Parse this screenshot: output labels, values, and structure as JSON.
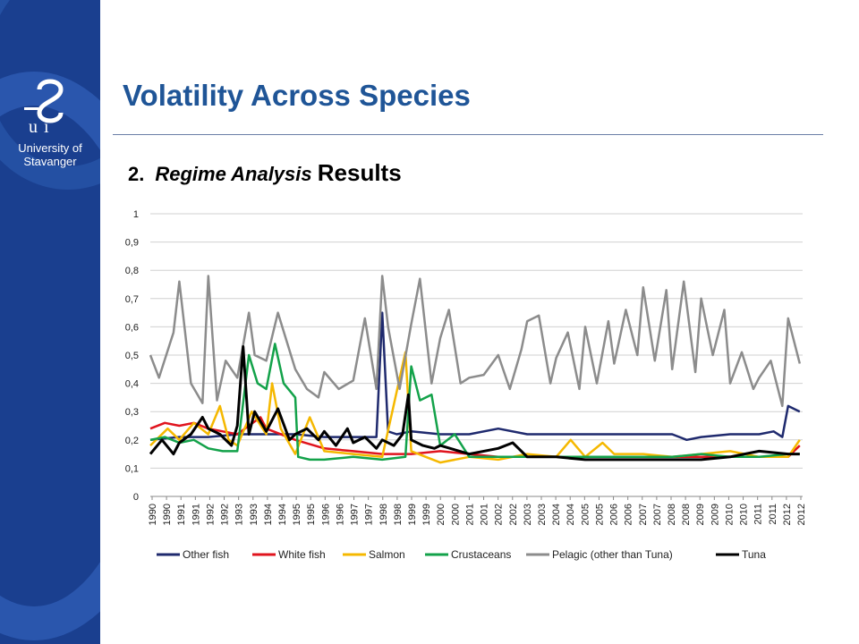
{
  "slide": {
    "title": "Volatility Across Species",
    "subtitle_number": "2.",
    "subtitle_italic": "Regime Analysis",
    "subtitle_plain": "Results"
  },
  "logo": {
    "line1": "University of",
    "line2": "Stavanger",
    "mark": "UiS"
  },
  "chart_data": {
    "type": "line",
    "ylim": [
      0,
      1
    ],
    "yticks": [
      "0",
      "0,1",
      "0,2",
      "0,3",
      "0,4",
      "0,5",
      "0,6",
      "0,7",
      "0,8",
      "0,9",
      "1"
    ],
    "xlim": [
      1990,
      2012.5
    ],
    "xtick_labels": [
      "1990",
      "1990",
      "1991",
      "1991",
      "1992",
      "1992",
      "1993",
      "1993",
      "1994",
      "1994",
      "1995",
      "1995",
      "1996",
      "1996",
      "1997",
      "1997",
      "1998",
      "1998",
      "1999",
      "1999",
      "2000",
      "2000",
      "2001",
      "2001",
      "2002",
      "2002",
      "2003",
      "2003",
      "2004",
      "2004",
      "2005",
      "2005",
      "2006",
      "2006",
      "2007",
      "2007",
      "2008",
      "2008",
      "2009",
      "2009",
      "2010",
      "2010",
      "2011",
      "2011",
      "2012",
      "2012"
    ],
    "grid": true,
    "legend_position": "bottom",
    "series": [
      {
        "name": "Other fish",
        "color": "#1f2a6e",
        "width": 2.5,
        "x": [
          1990,
          1991,
          1992,
          1993,
          1994,
          1995,
          1996,
          1997,
          1997.8,
          1998,
          1998.2,
          1998.5,
          1999,
          2000,
          2001,
          2002,
          2003,
          2004,
          2005,
          2006,
          2007,
          2008,
          2008.5,
          2009,
          2010,
          2011,
          2011.5,
          2011.8,
          2012,
          2012.4
        ],
        "y": [
          0.2,
          0.21,
          0.21,
          0.22,
          0.22,
          0.22,
          0.21,
          0.21,
          0.21,
          0.65,
          0.23,
          0.22,
          0.23,
          0.22,
          0.22,
          0.24,
          0.22,
          0.22,
          0.22,
          0.22,
          0.22,
          0.22,
          0.2,
          0.21,
          0.22,
          0.22,
          0.23,
          0.21,
          0.32,
          0.3
        ]
      },
      {
        "name": "White fish",
        "color": "#e0141e",
        "width": 2.5,
        "x": [
          1990,
          1990.5,
          1991,
          1991.5,
          1992,
          1993,
          1993.8,
          1994,
          1995,
          1996,
          1997,
          1998,
          1999,
          2000,
          2001,
          2002,
          2003,
          2004,
          2005,
          2006,
          2007,
          2008,
          2009,
          2010,
          2011,
          2012,
          2012.4
        ],
        "y": [
          0.24,
          0.26,
          0.25,
          0.26,
          0.24,
          0.22,
          0.28,
          0.24,
          0.2,
          0.17,
          0.16,
          0.15,
          0.15,
          0.16,
          0.15,
          0.14,
          0.14,
          0.14,
          0.14,
          0.14,
          0.14,
          0.14,
          0.14,
          0.14,
          0.14,
          0.14,
          0.18
        ]
      },
      {
        "name": "Salmon",
        "color": "#f5b800",
        "width": 2.5,
        "x": [
          1990,
          1990.6,
          1991,
          1991.5,
          1992,
          1992.4,
          1992.7,
          1993,
          1993.5,
          1994,
          1994.2,
          1994.5,
          1995,
          1995.5,
          1996,
          1997,
          1998,
          1998.8,
          1999,
          1999.5,
          2000,
          2001,
          2002,
          2003,
          2004,
          2004.5,
          2005,
          2005.6,
          2006,
          2007,
          2008,
          2009,
          2010,
          2011,
          2012,
          2012.4
        ],
        "y": [
          0.18,
          0.24,
          0.2,
          0.26,
          0.22,
          0.32,
          0.2,
          0.18,
          0.3,
          0.22,
          0.4,
          0.24,
          0.15,
          0.28,
          0.16,
          0.15,
          0.14,
          0.51,
          0.16,
          0.14,
          0.12,
          0.14,
          0.13,
          0.15,
          0.14,
          0.2,
          0.14,
          0.19,
          0.15,
          0.15,
          0.14,
          0.15,
          0.16,
          0.14,
          0.14,
          0.2
        ]
      },
      {
        "name": "Crustaceans",
        "color": "#13a24a",
        "width": 2.5,
        "x": [
          1990,
          1990.5,
          1991,
          1991.5,
          1992,
          1992.5,
          1993,
          1993.4,
          1993.7,
          1994,
          1994.3,
          1994.6,
          1995,
          1995.1,
          1995.5,
          1996,
          1997,
          1998,
          1998.8,
          1999,
          1999.3,
          1999.7,
          2000,
          2000.5,
          2001,
          2002,
          2003,
          2004,
          2005,
          2006,
          2007,
          2008,
          2009,
          2010,
          2011,
          2012,
          2012.4
        ],
        "y": [
          0.2,
          0.21,
          0.19,
          0.2,
          0.17,
          0.16,
          0.16,
          0.5,
          0.4,
          0.38,
          0.54,
          0.4,
          0.35,
          0.14,
          0.13,
          0.13,
          0.14,
          0.13,
          0.14,
          0.46,
          0.34,
          0.36,
          0.18,
          0.22,
          0.14,
          0.14,
          0.14,
          0.14,
          0.14,
          0.14,
          0.14,
          0.14,
          0.15,
          0.14,
          0.14,
          0.15,
          0.15
        ]
      },
      {
        "name": "Pelagic (other than Tuna)",
        "color": "#8c8c8c",
        "width": 2.5,
        "x": [
          1990,
          1990.3,
          1990.8,
          1991,
          1991.4,
          1991.8,
          1992,
          1992.3,
          1992.6,
          1993,
          1993.4,
          1993.6,
          1994,
          1994.4,
          1995,
          1995.4,
          1995.8,
          1996,
          1996.5,
          1997,
          1997.4,
          1997.8,
          1998,
          1998.2,
          1998.6,
          1999,
          1999.3,
          1999.7,
          2000,
          2000.3,
          2000.7,
          2001,
          2001.5,
          2002,
          2002.4,
          2002.8,
          2003,
          2003.4,
          2003.8,
          2004,
          2004.4,
          2004.8,
          2005,
          2005.4,
          2005.8,
          2006,
          2006.4,
          2006.8,
          2007,
          2007.4,
          2007.8,
          2008,
          2008.4,
          2008.8,
          2009,
          2009.4,
          2009.8,
          2010,
          2010.4,
          2010.8,
          2011,
          2011.4,
          2011.8,
          2012,
          2012.4
        ],
        "y": [
          0.5,
          0.42,
          0.58,
          0.76,
          0.4,
          0.33,
          0.78,
          0.34,
          0.48,
          0.42,
          0.65,
          0.5,
          0.48,
          0.65,
          0.45,
          0.38,
          0.35,
          0.44,
          0.38,
          0.41,
          0.63,
          0.38,
          0.78,
          0.6,
          0.38,
          0.61,
          0.77,
          0.4,
          0.56,
          0.66,
          0.4,
          0.42,
          0.43,
          0.5,
          0.38,
          0.52,
          0.62,
          0.64,
          0.4,
          0.49,
          0.58,
          0.38,
          0.6,
          0.4,
          0.62,
          0.47,
          0.66,
          0.5,
          0.74,
          0.48,
          0.73,
          0.45,
          0.76,
          0.44,
          0.7,
          0.5,
          0.66,
          0.4,
          0.51,
          0.38,
          0.42,
          0.48,
          0.32,
          0.63,
          0.47
        ]
      },
      {
        "name": "Tuna",
        "color": "#000000",
        "width": 3,
        "x": [
          1990,
          1990.4,
          1990.8,
          1991,
          1991.4,
          1991.8,
          1992,
          1992.4,
          1992.8,
          1993,
          1993.2,
          1993.4,
          1993.6,
          1994,
          1994.4,
          1994.8,
          1995,
          1995.4,
          1995.8,
          1996,
          1996.4,
          1996.8,
          1997,
          1997.4,
          1997.8,
          1998,
          1998.4,
          1998.7,
          1998.9,
          1999,
          1999.4,
          1999.8,
          2000,
          2001,
          2002,
          2002.5,
          2003,
          2004,
          2005,
          2006,
          2007,
          2008,
          2009,
          2010,
          2011,
          2012,
          2012.4
        ],
        "y": [
          0.15,
          0.2,
          0.15,
          0.19,
          0.22,
          0.28,
          0.24,
          0.22,
          0.18,
          0.25,
          0.53,
          0.22,
          0.3,
          0.23,
          0.31,
          0.2,
          0.22,
          0.24,
          0.2,
          0.23,
          0.18,
          0.24,
          0.19,
          0.21,
          0.17,
          0.2,
          0.18,
          0.22,
          0.36,
          0.2,
          0.18,
          0.17,
          0.18,
          0.15,
          0.17,
          0.19,
          0.14,
          0.14,
          0.13,
          0.13,
          0.13,
          0.13,
          0.13,
          0.14,
          0.16,
          0.15,
          0.15
        ]
      }
    ]
  }
}
